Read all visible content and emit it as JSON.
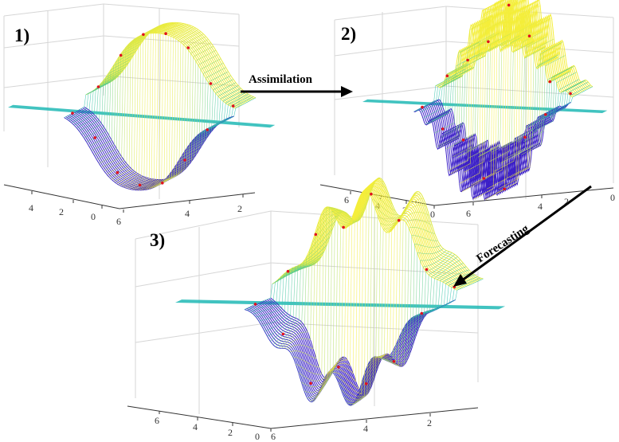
{
  "colors": {
    "surface_low": "#3b1fc7",
    "surface_mid": "#1fbfb8",
    "surface_high": "#f4ee3a",
    "flat_plane": "#20b8b5",
    "observation_dots": "#e0121e",
    "grid": "#d6d6d6",
    "axis": "#333333",
    "arrow": "#000000"
  },
  "panels": [
    {
      "label": "1)",
      "left_ticks": [
        "4",
        "2",
        "0"
      ],
      "right_ticks": [
        "6",
        "4",
        "2"
      ],
      "style": "smooth"
    },
    {
      "label": "2)",
      "left_ticks": [
        "6",
        "4",
        "2",
        "0"
      ],
      "right_ticks": [
        "6",
        "4",
        "2",
        "0"
      ],
      "style": "oscillating"
    },
    {
      "label": "3)",
      "left_ticks": [
        "6",
        "4",
        "2",
        "0"
      ],
      "right_ticks": [
        "6",
        "4",
        "2"
      ],
      "style": "ensemble"
    }
  ],
  "arrows": [
    {
      "label": "Assimilation",
      "icon": "right-arrow-icon"
    },
    {
      "label": "Forecasting",
      "icon": "down-left-arrow-icon"
    }
  ]
}
